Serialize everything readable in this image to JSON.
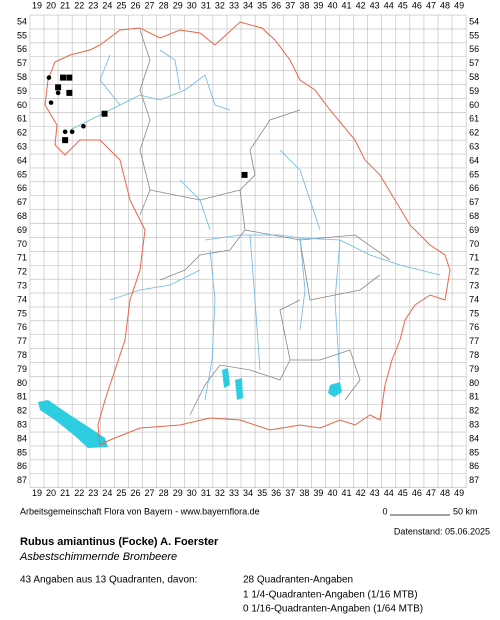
{
  "columns": [
    19,
    20,
    21,
    22,
    23,
    24,
    25,
    26,
    27,
    28,
    29,
    30,
    31,
    32,
    33,
    34,
    35,
    36,
    37,
    38,
    39,
    40,
    41,
    42,
    43,
    44,
    45,
    46,
    47,
    48,
    49
  ],
  "rows": [
    54,
    55,
    56,
    57,
    58,
    59,
    60,
    61,
    62,
    63,
    64,
    65,
    66,
    67,
    68,
    69,
    70,
    71,
    72,
    73,
    74,
    75,
    76,
    77,
    78,
    79,
    80,
    81,
    82,
    83,
    84,
    85,
    86,
    87
  ],
  "markers": [
    {
      "shape": "dot",
      "col": 19.85,
      "row": 58.0
    },
    {
      "shape": "square",
      "col": 20.85,
      "row": 58.0
    },
    {
      "shape": "square",
      "col": 21.3,
      "row": 58.0
    },
    {
      "shape": "square",
      "col": 20.5,
      "row": 58.7
    },
    {
      "shape": "dot",
      "col": 20.5,
      "row": 59.1
    },
    {
      "shape": "square",
      "col": 21.3,
      "row": 59.1
    },
    {
      "shape": "dot",
      "col": 20.0,
      "row": 59.8
    },
    {
      "shape": "square",
      "col": 23.8,
      "row": 60.6
    },
    {
      "shape": "dot",
      "col": 22.3,
      "row": 61.5
    },
    {
      "shape": "dot",
      "col": 21.0,
      "row": 61.9
    },
    {
      "shape": "dot",
      "col": 21.5,
      "row": 61.9
    },
    {
      "shape": "square",
      "col": 21.0,
      "row": 62.5
    },
    {
      "shape": "square",
      "col": 33.75,
      "row": 65.0
    }
  ],
  "footer": {
    "credit": "Arbeitsgemeinschaft Flora von Bayern - www.bayernflora.de",
    "scale_start": "0",
    "scale_end": "50 km",
    "date": "Datenstand: 05.06.2025"
  },
  "species": {
    "name": "Rubus amiantinus (Focke) A. Foerster",
    "common_name": "Asbestschimmernde Brombeere"
  },
  "stats": {
    "summary": "43 Angaben aus 13 Quadranten, davon:",
    "quadrant": "28 Quadranten-Angaben",
    "quarter": "1 1/4-Quadranten-Angaben (1/16 MTB)",
    "sixteenth": "0 1/16-Quadranten-Angaben (1/64 MTB)"
  }
}
